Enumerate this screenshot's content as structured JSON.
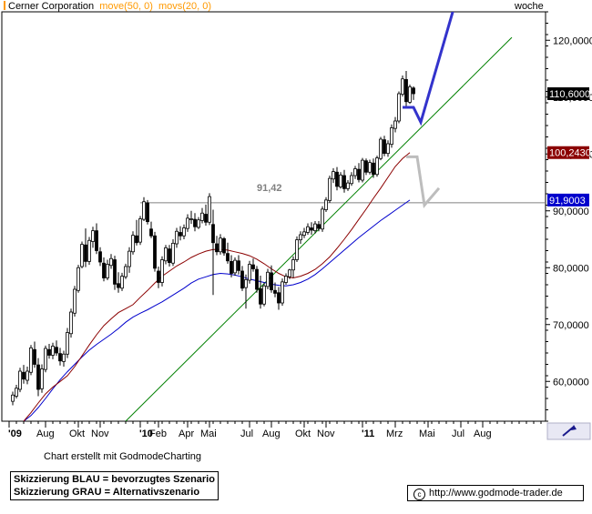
{
  "header": {
    "symbol": "Cerner Corporation",
    "ma_fast": "move(50, 0)",
    "ma_slow": "movs(20, 0)",
    "period": "woche"
  },
  "colors": {
    "candle": "#000000",
    "ma_fast": "#8b0000",
    "ma_slow": "#0000cc",
    "trend": "#008000",
    "resistance": "#808080",
    "scenario_blue": "#3333cc",
    "scenario_gray": "#bdbdbd",
    "header_accent": "#ff9900",
    "last_price_bg": "#000000",
    "ma_fast_bg": "#8b0000",
    "ma_slow_bg": "#0000cc"
  },
  "chart_data": {
    "type": "candlestick",
    "y_axis": {
      "min": 53,
      "max": 125,
      "ticks": [
        60,
        70,
        80,
        90,
        100,
        110,
        120
      ],
      "tick_labels": [
        "60,0000",
        "70,0000",
        "80,0000",
        "90,0000",
        "100,0000",
        "110,0000",
        "120,0000"
      ]
    },
    "x_axis": {
      "tick_labels": [
        "'09",
        "Aug",
        "Okt",
        "Nov",
        "'10",
        "Feb",
        "Apr",
        "Mai",
        "Jul",
        "Aug",
        "Okt",
        "Nov",
        "'11",
        "Mrz",
        "Mai",
        "Jul",
        "Aug"
      ],
      "tick_weeks": [
        0,
        10,
        19,
        25,
        36,
        41,
        49,
        55,
        66,
        72,
        81,
        87,
        97,
        106,
        115,
        124,
        130
      ]
    },
    "last_price": {
      "label": "110,6000",
      "value": 110.6
    },
    "ma_fast_value": {
      "label": "100,2430",
      "value": 100.243
    },
    "ma_slow_value": {
      "label": "91,9003",
      "value": 91.9003
    },
    "resistance": {
      "value": 91.42,
      "label": "91,42",
      "from_week": 36,
      "to_week": 138
    },
    "trend_line": {
      "from": [
        32,
        53
      ],
      "to": [
        138,
        120.5
      ]
    },
    "ohlc": [
      [
        56.5,
        58.2,
        55.8,
        57.6
      ],
      [
        57.4,
        59.4,
        57.0,
        58.8
      ],
      [
        58.6,
        62.4,
        58.1,
        61.8
      ],
      [
        61.6,
        62.9,
        59.6,
        60.4
      ],
      [
        60.2,
        62.6,
        59.5,
        61.8
      ],
      [
        61.6,
        66.4,
        61.1,
        65.9
      ],
      [
        65.6,
        67.0,
        62.4,
        63.0
      ],
      [
        62.9,
        64.1,
        57.4,
        58.6
      ],
      [
        58.7,
        63.0,
        58.0,
        62.2
      ],
      [
        62.1,
        66.3,
        61.6,
        65.8
      ],
      [
        65.6,
        66.6,
        64.0,
        64.6
      ],
      [
        64.6,
        66.8,
        63.9,
        66.2
      ],
      [
        66.0,
        67.2,
        64.5,
        65.0
      ],
      [
        64.9,
        65.9,
        62.8,
        63.6
      ],
      [
        63.5,
        65.4,
        62.6,
        64.8
      ],
      [
        64.8,
        69.4,
        64.1,
        68.6
      ],
      [
        68.4,
        72.8,
        67.7,
        72.2
      ],
      [
        72.0,
        76.8,
        71.4,
        76.2
      ],
      [
        76.0,
        80.5,
        75.6,
        80.0
      ],
      [
        80.2,
        84.6,
        79.9,
        84.1
      ],
      [
        84.0,
        86.9,
        80.1,
        81.1
      ],
      [
        81.1,
        85.4,
        80.5,
        84.8
      ],
      [
        84.6,
        87.2,
        83.5,
        86.5
      ],
      [
        86.5,
        87.8,
        82.4,
        83.0
      ],
      [
        82.8,
        83.6,
        80.3,
        81.0
      ],
      [
        80.8,
        81.8,
        77.6,
        78.2
      ],
      [
        78.2,
        81.4,
        77.8,
        80.6
      ],
      [
        80.4,
        82.4,
        79.8,
        81.6
      ],
      [
        81.4,
        82.1,
        76.1,
        77.1
      ],
      [
        77.2,
        79.2,
        75.6,
        76.5
      ],
      [
        76.4,
        79.1,
        75.9,
        78.5
      ],
      [
        78.4,
        80.7,
        78.0,
        80.2
      ],
      [
        80.2,
        83.6,
        79.1,
        82.9
      ],
      [
        82.8,
        86.4,
        82.3,
        85.7
      ],
      [
        85.6,
        88.4,
        83.9,
        84.4
      ],
      [
        84.5,
        89.1,
        84.0,
        88.6
      ],
      [
        88.5,
        92.4,
        88.2,
        91.6
      ],
      [
        91.4,
        91.9,
        87.6,
        88.1
      ],
      [
        86.8,
        88.1,
        85.2,
        85.6
      ],
      [
        85.6,
        86.3,
        79.3,
        79.9
      ],
      [
        79.4,
        80.2,
        76.4,
        77.4
      ],
      [
        77.4,
        82.0,
        76.7,
        81.4
      ],
      [
        81.2,
        84.0,
        80.6,
        83.5
      ],
      [
        83.3,
        84.0,
        80.2,
        80.9
      ],
      [
        80.8,
        85.0,
        80.3,
        84.3
      ],
      [
        84.2,
        87.0,
        83.5,
        86.4
      ],
      [
        86.2,
        87.3,
        84.8,
        85.6
      ],
      [
        85.6,
        87.6,
        85.0,
        87.0
      ],
      [
        86.9,
        89.4,
        86.3,
        88.7
      ],
      [
        88.5,
        90.0,
        87.7,
        88.6
      ],
      [
        88.5,
        89.6,
        86.4,
        87.2
      ],
      [
        87.1,
        88.9,
        86.8,
        88.4
      ],
      [
        88.3,
        90.5,
        87.8,
        89.6
      ],
      [
        89.4,
        91.1,
        87.4,
        88.0
      ],
      [
        88.0,
        93.1,
        87.5,
        92.5
      ],
      [
        87.6,
        90.2,
        75.2,
        84.4
      ],
      [
        84.2,
        85.6,
        82.2,
        82.8
      ],
      [
        82.8,
        85.9,
        82.3,
        85.2
      ],
      [
        85.1,
        85.4,
        82.1,
        82.6
      ],
      [
        82.5,
        84.4,
        80.7,
        81.2
      ],
      [
        81.1,
        82.2,
        78.3,
        79.0
      ],
      [
        79.1,
        81.8,
        78.6,
        81.3
      ],
      [
        81.2,
        82.2,
        78.8,
        79.5
      ],
      [
        79.4,
        80.3,
        75.9,
        76.4
      ],
      [
        76.5,
        78.8,
        72.8,
        77.9
      ],
      [
        77.8,
        81.2,
        77.2,
        80.6
      ],
      [
        80.5,
        81.6,
        79.3,
        79.8
      ],
      [
        79.7,
        80.3,
        75.6,
        76.2
      ],
      [
        76.3,
        78.6,
        72.8,
        73.6
      ],
      [
        73.6,
        77.4,
        73.2,
        76.8
      ],
      [
        76.7,
        79.8,
        76.2,
        79.2
      ],
      [
        79.1,
        80.4,
        75.6,
        76.1
      ],
      [
        76.0,
        77.4,
        74.8,
        75.5
      ],
      [
        75.6,
        76.6,
        72.6,
        73.8
      ],
      [
        73.8,
        78.1,
        73.3,
        77.5
      ],
      [
        77.4,
        79.0,
        77.0,
        78.5
      ],
      [
        78.4,
        79.8,
        78.0,
        79.6
      ],
      [
        79.6,
        82.0,
        78.2,
        81.4
      ],
      [
        81.4,
        85.5,
        81.0,
        84.9
      ],
      [
        84.9,
        86.4,
        84.2,
        85.8
      ],
      [
        85.7,
        87.0,
        85.2,
        86.3
      ],
      [
        86.2,
        87.8,
        85.8,
        87.2
      ],
      [
        87.0,
        88.0,
        85.8,
        86.6
      ],
      [
        86.5,
        88.2,
        86.0,
        87.7
      ],
      [
        87.6,
        88.2,
        86.4,
        86.9
      ],
      [
        86.8,
        90.8,
        86.3,
        90.3
      ],
      [
        90.2,
        92.4,
        89.8,
        91.9
      ],
      [
        91.8,
        96.2,
        91.4,
        95.7
      ],
      [
        95.6,
        97.5,
        94.9,
        96.9
      ],
      [
        96.8,
        97.7,
        93.6,
        94.3
      ],
      [
        94.2,
        96.8,
        93.9,
        96.3
      ],
      [
        96.2,
        97.2,
        93.2,
        93.9
      ],
      [
        93.9,
        95.4,
        93.5,
        94.9
      ],
      [
        94.8,
        96.8,
        94.4,
        96.2
      ],
      [
        96.2,
        97.9,
        95.6,
        97.4
      ],
      [
        97.3,
        98.4,
        95.0,
        95.5
      ],
      [
        95.4,
        99.3,
        95.0,
        98.9
      ],
      [
        98.8,
        99.2,
        96.3,
        96.8
      ],
      [
        96.8,
        99.0,
        96.4,
        98.5
      ],
      [
        98.4,
        99.2,
        95.8,
        96.4
      ],
      [
        96.4,
        99.7,
        96.0,
        99.3
      ],
      [
        99.2,
        103.0,
        98.9,
        102.6
      ],
      [
        102.5,
        103.2,
        99.6,
        100.1
      ],
      [
        100.1,
        102.4,
        99.5,
        101.8
      ],
      [
        101.7,
        105.2,
        101.1,
        104.6
      ],
      [
        104.5,
        106.5,
        103.8,
        105.8
      ],
      [
        105.8,
        111.0,
        105.4,
        110.6
      ],
      [
        110.5,
        113.8,
        110.1,
        113.2
      ],
      [
        113.1,
        114.6,
        108.3,
        109.2
      ],
      [
        109.1,
        112.2,
        108.8,
        111.8
      ],
      [
        111.6,
        111.9,
        109.5,
        110.6
      ]
    ],
    "ma_fast": [
      [
        4,
        53.0
      ],
      [
        6,
        54.5
      ],
      [
        8,
        56.2
      ],
      [
        10,
        57.8
      ],
      [
        12,
        59.0
      ],
      [
        14,
        60.0
      ],
      [
        16,
        61.0
      ],
      [
        18,
        62.6
      ],
      [
        20,
        64.5
      ],
      [
        22,
        66.4
      ],
      [
        24,
        68.2
      ],
      [
        26,
        69.8
      ],
      [
        28,
        71.0
      ],
      [
        30,
        72.1
      ],
      [
        32,
        72.8
      ],
      [
        34,
        73.5
      ],
      [
        36,
        74.8
      ],
      [
        38,
        76.0
      ],
      [
        40,
        77.3
      ],
      [
        42,
        78.5
      ],
      [
        44,
        79.4
      ],
      [
        46,
        80.3
      ],
      [
        48,
        81.0
      ],
      [
        50,
        81.8
      ],
      [
        52,
        82.4
      ],
      [
        54,
        82.9
      ],
      [
        56,
        83.2
      ],
      [
        58,
        83.2
      ],
      [
        60,
        83.1
      ],
      [
        62,
        82.8
      ],
      [
        64,
        82.5
      ],
      [
        66,
        82.1
      ],
      [
        68,
        81.5
      ],
      [
        70,
        80.7
      ],
      [
        72,
        79.8
      ],
      [
        74,
        79.0
      ],
      [
        76,
        78.4
      ],
      [
        78,
        78.2
      ],
      [
        80,
        78.5
      ],
      [
        82,
        79.0
      ],
      [
        84,
        79.7
      ],
      [
        86,
        80.7
      ],
      [
        88,
        81.9
      ],
      [
        90,
        83.4
      ],
      [
        92,
        85.0
      ],
      [
        94,
        86.7
      ],
      [
        96,
        88.5
      ],
      [
        98,
        90.3
      ],
      [
        100,
        92.2
      ],
      [
        102,
        94.0
      ],
      [
        104,
        95.9
      ],
      [
        106,
        97.8
      ],
      [
        108,
        99.2
      ],
      [
        110,
        100.243
      ]
    ],
    "ma_slow": [
      [
        4,
        53.0
      ],
      [
        6,
        54.0
      ],
      [
        8,
        55.4
      ],
      [
        10,
        57.0
      ],
      [
        12,
        58.7
      ],
      [
        14,
        60.3
      ],
      [
        16,
        61.7
      ],
      [
        18,
        63.0
      ],
      [
        20,
        64.3
      ],
      [
        22,
        65.5
      ],
      [
        24,
        66.5
      ],
      [
        26,
        67.4
      ],
      [
        28,
        68.3
      ],
      [
        30,
        69.3
      ],
      [
        32,
        70.4
      ],
      [
        34,
        71.3
      ],
      [
        36,
        72.0
      ],
      [
        38,
        72.6
      ],
      [
        40,
        73.3
      ],
      [
        42,
        74.0
      ],
      [
        44,
        74.8
      ],
      [
        46,
        75.6
      ],
      [
        48,
        76.4
      ],
      [
        50,
        77.3
      ],
      [
        52,
        78.0
      ],
      [
        54,
        78.4
      ],
      [
        56,
        78.8
      ],
      [
        58,
        79.0
      ],
      [
        60,
        78.9
      ],
      [
        62,
        78.7
      ],
      [
        64,
        78.4
      ],
      [
        66,
        78.0
      ],
      [
        68,
        77.7
      ],
      [
        70,
        77.4
      ],
      [
        72,
        77.1
      ],
      [
        74,
        76.9
      ],
      [
        76,
        76.8
      ],
      [
        78,
        77.0
      ],
      [
        80,
        77.4
      ],
      [
        82,
        78.0
      ],
      [
        84,
        78.8
      ],
      [
        86,
        79.8
      ],
      [
        88,
        80.9
      ],
      [
        90,
        82.0
      ],
      [
        92,
        83.1
      ],
      [
        94,
        84.2
      ],
      [
        96,
        85.3
      ],
      [
        98,
        86.3
      ],
      [
        100,
        87.3
      ],
      [
        102,
        88.3
      ],
      [
        104,
        89.2
      ],
      [
        106,
        90.1
      ],
      [
        108,
        91.0
      ],
      [
        110,
        91.9003
      ]
    ],
    "scenario_blue": [
      [
        108,
        108.2
      ],
      [
        111,
        108.2
      ],
      [
        113,
        105.6
      ],
      [
        122,
        125.5
      ]
    ],
    "scenario_gray": [
      [
        109,
        99.5
      ],
      [
        112,
        99.5
      ],
      [
        114,
        91.0
      ],
      [
        118,
        94.0
      ]
    ]
  },
  "toolbar": {
    "arrow_icon": "draw-arrow-icon"
  },
  "footer": {
    "credit": "Chart erstellt mit GodmodeCharting",
    "legend_blue": "Skizzierung BLAU = bevorzugtes Szenario",
    "legend_gray": "Skizzierung GRAU = Alternativszenario",
    "source": "http://www.godmode-trader.de",
    "copyright_symbol": "c"
  }
}
